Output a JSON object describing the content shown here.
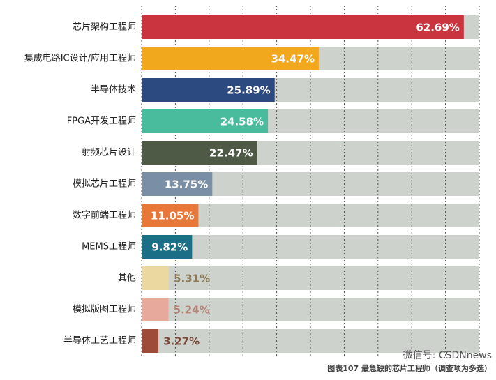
{
  "chart_data": {
    "type": "hbar",
    "categories": [
      "芯片架构工程师",
      "集成电路IC设计/应用工程师",
      "半导体技术",
      "FPGA开发工程师",
      "射频芯片设计",
      "模拟芯片工程师",
      "数字前端工程师",
      "MEMS工程师",
      "其他",
      "模拟版图工程师",
      "半导体工艺工程师"
    ],
    "values": [
      62.69,
      34.47,
      25.89,
      24.58,
      22.47,
      13.75,
      11.05,
      9.82,
      5.31,
      5.24,
      3.27
    ],
    "value_labels": [
      "62.69%",
      "34.47%",
      "25.89%",
      "24.58%",
      "22.47%",
      "13.75%",
      "11.05%",
      "9.82%",
      "5.31%",
      "5.24%",
      "3.27%"
    ],
    "colors": [
      "#c9343f",
      "#f2a81d",
      "#2d4a80",
      "#48bc9c",
      "#4e5a45",
      "#7a8ea6",
      "#e8773a",
      "#1a6e86",
      "#ebd8a0",
      "#e6a99c",
      "#9e4b3a"
    ],
    "value_label_colors": [
      "#ffffff",
      "#ffffff",
      "#ffffff",
      "#ffffff",
      "#ffffff",
      "#ffffff",
      "#ffffff",
      "#ffffff",
      "#8b7a55",
      "#b58377",
      "#7a4a3a"
    ],
    "track_color": "#cdd3cc",
    "xlim": [
      0,
      65.7
    ],
    "caption": "图表107 最急缺的芯片工程师（调查项为多选）",
    "watermark": "微信号: CSDNnews"
  }
}
